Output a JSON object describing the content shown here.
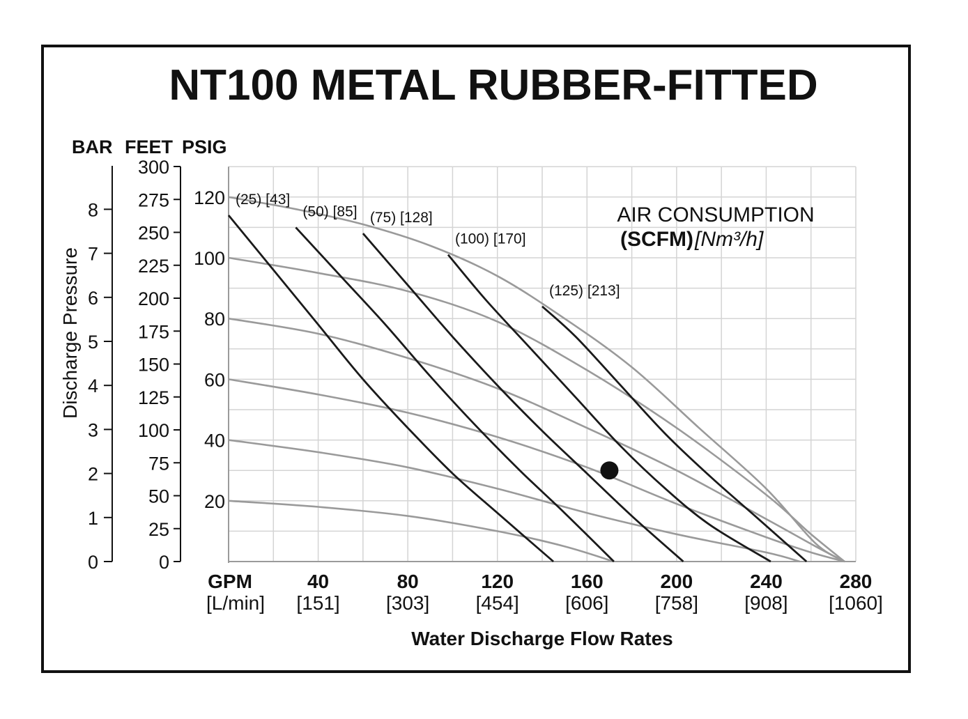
{
  "chart_data": {
    "type": "line",
    "title": "NT100 METAL RUBBER-FITTED",
    "axis_headers": {
      "bar": "BAR",
      "feet": "FEET",
      "psig": "PSIG"
    },
    "ylabel": "Discharge Pressure",
    "xlabel": "Water Discharge Flow Rates",
    "x_unit_primary": "GPM",
    "x_unit_secondary": "[L/min]",
    "x_ticks": [
      {
        "value": 40,
        "sub": "[151]"
      },
      {
        "value": 80,
        "sub": "[303]"
      },
      {
        "value": 120,
        "sub": "[454]"
      },
      {
        "value": 160,
        "sub": "[606]"
      },
      {
        "value": 200,
        "sub": "[758]"
      },
      {
        "value": 240,
        "sub": "[908]"
      },
      {
        "value": 280,
        "sub": "[1060]"
      }
    ],
    "xlim": [
      0,
      280
    ],
    "ylim_psig": [
      0,
      130
    ],
    "psig_ticks": [
      20,
      40,
      60,
      80,
      100,
      120
    ],
    "feet_ticks": [
      0,
      25,
      50,
      75,
      100,
      125,
      150,
      175,
      200,
      225,
      250,
      275,
      300
    ],
    "bar_ticks": [
      0,
      1,
      2,
      3,
      4,
      5,
      6,
      7,
      8
    ],
    "grid": true,
    "legend_title_line1": "AIR CONSUMPTION",
    "legend_title_line2_bold": "(SCFM)",
    "legend_title_line2_italic": "[Nm³/h]",
    "pressure_curves": [
      {
        "points": [
          [
            0,
            120
          ],
          [
            30,
            116
          ],
          [
            60,
            111
          ],
          [
            90,
            104
          ],
          [
            120,
            94
          ],
          [
            150,
            80
          ],
          [
            180,
            64
          ],
          [
            210,
            44
          ],
          [
            240,
            24
          ],
          [
            262,
            6
          ],
          [
            275,
            0
          ]
        ]
      },
      {
        "points": [
          [
            0,
            100
          ],
          [
            40,
            95
          ],
          [
            80,
            89
          ],
          [
            120,
            79
          ],
          [
            160,
            63
          ],
          [
            200,
            44
          ],
          [
            240,
            22
          ],
          [
            260,
            9
          ],
          [
            275,
            0
          ]
        ]
      },
      {
        "points": [
          [
            0,
            80
          ],
          [
            40,
            75
          ],
          [
            80,
            67
          ],
          [
            120,
            57
          ],
          [
            160,
            44
          ],
          [
            200,
            30
          ],
          [
            240,
            14
          ],
          [
            262,
            5
          ],
          [
            275,
            0
          ]
        ]
      },
      {
        "points": [
          [
            0,
            60
          ],
          [
            40,
            55
          ],
          [
            80,
            49
          ],
          [
            120,
            41
          ],
          [
            160,
            31
          ],
          [
            200,
            19
          ],
          [
            240,
            8
          ],
          [
            260,
            3
          ],
          [
            275,
            0
          ]
        ]
      },
      {
        "points": [
          [
            0,
            40
          ],
          [
            40,
            36
          ],
          [
            80,
            31
          ],
          [
            120,
            24
          ],
          [
            160,
            16
          ],
          [
            200,
            9
          ],
          [
            240,
            3
          ],
          [
            255,
            0
          ]
        ]
      },
      {
        "points": [
          [
            0,
            20
          ],
          [
            40,
            18
          ],
          [
            80,
            15
          ],
          [
            120,
            10
          ],
          [
            150,
            5
          ],
          [
            172,
            0
          ]
        ]
      }
    ],
    "air_curves": [
      {
        "scfm": 25,
        "nm3h": 43,
        "points": [
          [
            0,
            114
          ],
          [
            20,
            96
          ],
          [
            40,
            78
          ],
          [
            60,
            60
          ],
          [
            80,
            44
          ],
          [
            100,
            29
          ],
          [
            120,
            16
          ],
          [
            145,
            0
          ]
        ]
      },
      {
        "scfm": 50,
        "nm3h": 85,
        "points": [
          [
            30,
            110
          ],
          [
            50,
            94
          ],
          [
            70,
            78
          ],
          [
            90,
            61
          ],
          [
            110,
            45
          ],
          [
            130,
            30
          ],
          [
            150,
            16
          ],
          [
            172,
            0
          ]
        ]
      },
      {
        "scfm": 75,
        "nm3h": 128,
        "points": [
          [
            60,
            108
          ],
          [
            80,
            91
          ],
          [
            100,
            74
          ],
          [
            120,
            58
          ],
          [
            140,
            43
          ],
          [
            160,
            29
          ],
          [
            180,
            15
          ],
          [
            203,
            0
          ]
        ]
      },
      {
        "scfm": 100,
        "nm3h": 170,
        "points": [
          [
            98,
            101
          ],
          [
            115,
            86
          ],
          [
            135,
            70
          ],
          [
            155,
            54
          ],
          [
            175,
            38
          ],
          [
            195,
            24
          ],
          [
            215,
            12
          ],
          [
            242,
            0
          ]
        ]
      },
      {
        "scfm": 125,
        "nm3h": 213,
        "points": [
          [
            140,
            84
          ],
          [
            155,
            74
          ],
          [
            175,
            58
          ],
          [
            195,
            42
          ],
          [
            215,
            28
          ],
          [
            235,
            15
          ],
          [
            258,
            0
          ]
        ]
      }
    ],
    "operating_point": {
      "gpm": 170,
      "psig": 30
    }
  }
}
